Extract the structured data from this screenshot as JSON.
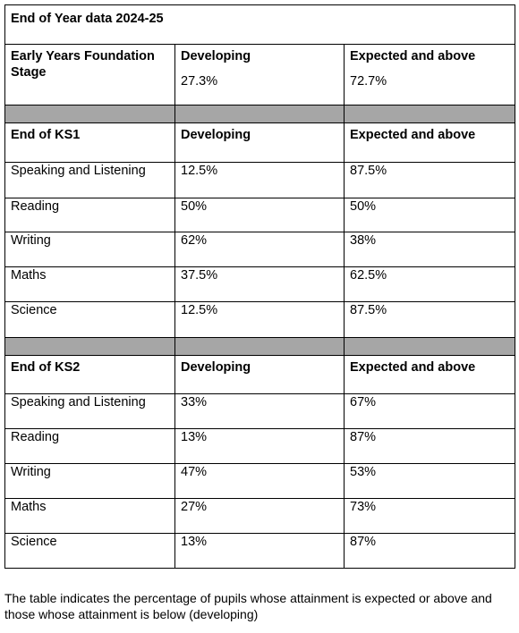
{
  "title": "End of Year data 2024-25",
  "columns": {
    "developing": "Developing",
    "expected": "Expected and above"
  },
  "eyfs": {
    "label": "Early Years Foundation Stage",
    "developing": "27.3%",
    "expected": "72.7%"
  },
  "ks1": {
    "label": "End of KS1",
    "rows": [
      {
        "subject": "Speaking and Listening",
        "developing": "12.5%",
        "expected": "87.5%"
      },
      {
        "subject": "Reading",
        "developing": "50%",
        "expected": "50%"
      },
      {
        "subject": "Writing",
        "developing": "62%",
        "expected": "38%"
      },
      {
        "subject": "Maths",
        "developing": "37.5%",
        "expected": "62.5%"
      },
      {
        "subject": "Science",
        "developing": "12.5%",
        "expected": "87.5%"
      }
    ]
  },
  "ks2": {
    "label": "End of KS2",
    "rows": [
      {
        "subject": "Speaking and Listening",
        "developing": "33%",
        "expected": "67%"
      },
      {
        "subject": "Reading",
        "developing": "13%",
        "expected": "87%"
      },
      {
        "subject": "Writing",
        "developing": "47%",
        "expected": "53%"
      },
      {
        "subject": "Maths",
        "developing": "27%",
        "expected": "73%"
      },
      {
        "subject": "Science",
        "developing": "13%",
        "expected": "87%"
      }
    ]
  },
  "footer": "The table indicates the percentage of pupils whose attainment is expected or above and those whose attainment is below (developing)"
}
